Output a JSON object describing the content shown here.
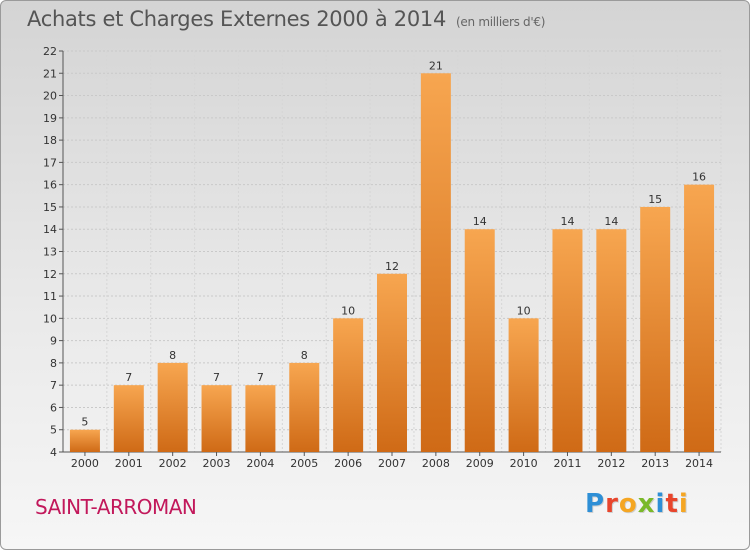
{
  "header": {
    "title": "Achats et Charges Externes 2000 à 2014",
    "unit": "(en milliers d'€)"
  },
  "footer": {
    "commune": "SAINT-ARROMAN",
    "logo_letters": [
      {
        "char": "P",
        "color": "#2e8fd6"
      },
      {
        "char": "r",
        "color": "#e8452c"
      },
      {
        "char": "o",
        "color": "#f5a623"
      },
      {
        "char": "x",
        "color": "#7ab929"
      },
      {
        "char": "i",
        "color": "#2e8fd6"
      },
      {
        "char": "t",
        "color": "#e8452c"
      },
      {
        "char": "i",
        "color": "#f5a623"
      }
    ]
  },
  "colors": {
    "bar_light": "#f7a650",
    "bar_dark": "#cf6a16",
    "text": "#333333"
  },
  "chart_data": {
    "type": "bar",
    "title": "Achats et Charges Externes 2000 à 2014",
    "categories": [
      "2000",
      "2001",
      "2002",
      "2003",
      "2004",
      "2005",
      "2006",
      "2007",
      "2008",
      "2009",
      "2010",
      "2011",
      "2012",
      "2013",
      "2014"
    ],
    "values": [
      5,
      7,
      8,
      7,
      7,
      8,
      10,
      12,
      21,
      14,
      10,
      14,
      14,
      15,
      16
    ],
    "ylim": [
      4,
      22
    ],
    "yticks": [
      4,
      5,
      6,
      7,
      8,
      9,
      10,
      11,
      12,
      13,
      14,
      15,
      16,
      17,
      18,
      19,
      20,
      21,
      22
    ],
    "grid": true,
    "legend": "none"
  }
}
